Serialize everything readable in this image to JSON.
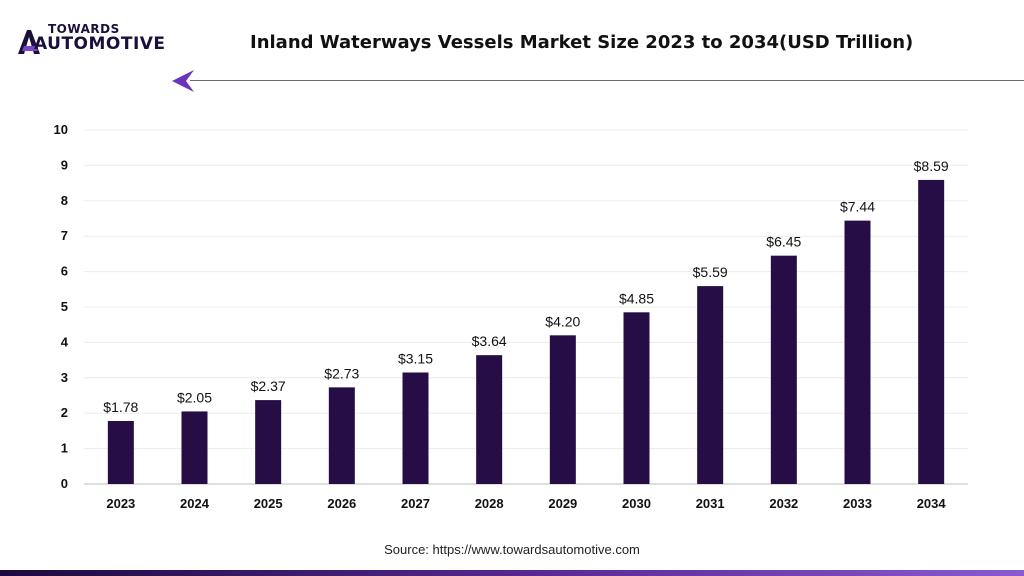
{
  "brand": {
    "line1": "TOWARDS",
    "line2": "AUTOMOTIVE"
  },
  "header": {
    "title": "Inland Waterways Vessels Market Size 2023 to 2034(USD Trillion)"
  },
  "footer": {
    "source": "Source: https://www.towardsautomotive.com"
  },
  "colors": {
    "bar": "#260d45",
    "accent": "#6a34b8",
    "brand_text": "#1b0f3b"
  },
  "chart_data": {
    "type": "bar",
    "title": "Inland Waterways Vessels Market Size 2023 to 2034(USD Trillion)",
    "categories": [
      "2023",
      "2024",
      "2025",
      "2026",
      "2027",
      "2028",
      "2029",
      "2030",
      "2031",
      "2032",
      "2033",
      "2034"
    ],
    "values": [
      1.78,
      2.05,
      2.37,
      2.73,
      3.15,
      3.64,
      4.2,
      4.85,
      5.59,
      6.45,
      7.44,
      8.59
    ],
    "data_labels": [
      "$1.78",
      "$2.05",
      "$2.37",
      "$2.73",
      "$3.15",
      "$3.64",
      "$4.20",
      "$4.85",
      "$5.59",
      "$6.45",
      "$7.44",
      "$8.59"
    ],
    "yticks": [
      "0",
      "1",
      "2",
      "3",
      "4",
      "5",
      "6",
      "7",
      "8",
      "9",
      "10"
    ],
    "ylim": [
      0,
      10
    ],
    "xlabel": "",
    "ylabel": "",
    "grid": true,
    "legend": "none"
  }
}
